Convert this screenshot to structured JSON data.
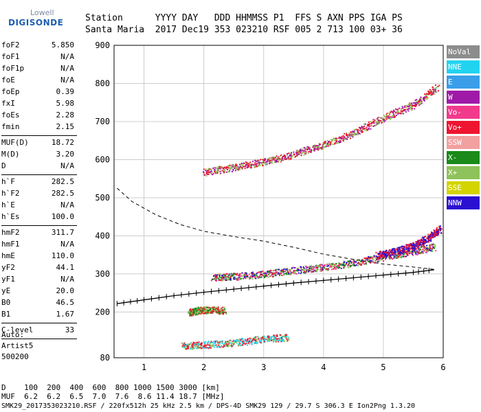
{
  "logo": {
    "line1": "Lowell",
    "line2": "DIGISONDE"
  },
  "header": {
    "line1": "Station      YYYY DAY   DDD HHMMSS P1  FFS S AXN PPS IGA PS",
    "line2": "Santa Maria  2017 Dec19 353 023210 RSF 005 2 713 100 03+ 36"
  },
  "params": [
    {
      "k": "foF2",
      "v": "5.850"
    },
    {
      "k": "foF1",
      "v": "N/A"
    },
    {
      "k": "foF1p",
      "v": "N/A"
    },
    {
      "k": "foE",
      "v": "N/A"
    },
    {
      "k": "foEp",
      "v": "0.39"
    },
    {
      "k": "fxI",
      "v": "5.98"
    },
    {
      "k": "foEs",
      "v": "2.28"
    },
    {
      "k": "fmin",
      "v": "2.15",
      "sep": true
    },
    {
      "k": "MUF(D)",
      "v": "18.72"
    },
    {
      "k": "M(D)",
      "v": "3.20"
    },
    {
      "k": "D",
      "v": "N/A",
      "sep": true
    },
    {
      "k": "h`F",
      "v": "282.5"
    },
    {
      "k": "h`F2",
      "v": "282.5"
    },
    {
      "k": "h`E",
      "v": "N/A"
    },
    {
      "k": "h`Es",
      "v": "100.0",
      "sep": true
    },
    {
      "k": "hmF2",
      "v": "311.7"
    },
    {
      "k": "hmF1",
      "v": "N/A"
    },
    {
      "k": "hmE",
      "v": "110.0"
    },
    {
      "k": "yF2",
      "v": "44.1"
    },
    {
      "k": "yF1",
      "v": "N/A"
    },
    {
      "k": "yE",
      "v": "20.0"
    },
    {
      "k": "B0",
      "v": "46.5"
    },
    {
      "k": "B1",
      "v": "1.67",
      "sep": true
    },
    {
      "k": "C-level",
      "v": "33",
      "sep": true
    }
  ],
  "auto": {
    "line1": "Auto:",
    "line2": "Artist5",
    "line3": "500200"
  },
  "legend": [
    {
      "label": "NoVal",
      "color": "#8c8c8c"
    },
    {
      "label": "NNE",
      "color": "#22d3f0"
    },
    {
      "label": "E",
      "color": "#3a9ee8"
    },
    {
      "label": "W",
      "color": "#a01aa8"
    },
    {
      "label": "Vo-",
      "color": "#f23a8c"
    },
    {
      "label": "Vo+",
      "color": "#ee1530"
    },
    {
      "label": "SSW",
      "color": "#f2a0a0"
    },
    {
      "label": "X-",
      "color": "#1a8a1a"
    },
    {
      "label": "X+",
      "color": "#8ec25a"
    },
    {
      "label": "SSE",
      "color": "#d4d400"
    },
    {
      "label": "NNW",
      "color": "#2a10d0"
    }
  ],
  "chart_data": {
    "type": "scatter",
    "xlim": [
      0.5,
      6.0
    ],
    "ylim": [
      80,
      900
    ],
    "x_ticks": [
      1,
      2,
      3,
      4,
      5,
      6
    ],
    "y_ticks": [
      80,
      200,
      300,
      400,
      500,
      600,
      700,
      800,
      900
    ],
    "grid": true,
    "legend_position": "right",
    "traces": [
      {
        "name": "F2 O-trace",
        "color_names": [
          "Vo+",
          "Vo-",
          "NNW",
          "X-",
          "X+"
        ],
        "points": [
          [
            2.15,
            292
          ],
          [
            2.5,
            294
          ],
          [
            3.0,
            300
          ],
          [
            3.5,
            310
          ],
          [
            4.0,
            318
          ],
          [
            4.5,
            330
          ],
          [
            5.0,
            345
          ],
          [
            5.5,
            360
          ],
          [
            5.85,
            372
          ]
        ]
      },
      {
        "name": "F2 upper trace",
        "color_names": [
          "NNW",
          "Vo+"
        ],
        "points": [
          [
            4.9,
            350
          ],
          [
            5.2,
            360
          ],
          [
            5.5,
            375
          ],
          [
            5.75,
            395
          ],
          [
            5.95,
            420
          ]
        ]
      },
      {
        "name": "F2 multihop",
        "color_names": [
          "W",
          "Vo+",
          "X+"
        ],
        "points": [
          [
            2.0,
            568
          ],
          [
            2.5,
            580
          ],
          [
            3.0,
            595
          ],
          [
            3.5,
            615
          ],
          [
            4.0,
            640
          ],
          [
            4.5,
            670
          ],
          [
            5.0,
            710
          ],
          [
            5.5,
            745
          ],
          [
            5.9,
            790
          ]
        ]
      },
      {
        "name": "Es trace",
        "color_names": [
          "Vo+",
          "X-",
          "X+"
        ],
        "points": [
          [
            1.75,
            200
          ],
          [
            1.9,
            205
          ],
          [
            2.1,
            207
          ],
          [
            2.35,
            205
          ]
        ]
      },
      {
        "name": "Es lower",
        "color_names": [
          "Vo+",
          "X+",
          "NNE"
        ],
        "points": [
          [
            1.65,
            112
          ],
          [
            2.0,
            115
          ],
          [
            2.5,
            120
          ],
          [
            3.0,
            130
          ],
          [
            3.4,
            135
          ]
        ]
      }
    ],
    "profile_curve": {
      "points": [
        [
          0.55,
          222
        ],
        [
          1.0,
          232
        ],
        [
          1.5,
          243
        ],
        [
          2.0,
          252
        ],
        [
          2.5,
          260
        ],
        [
          3.0,
          268
        ],
        [
          3.5,
          276
        ],
        [
          4.0,
          283
        ],
        [
          4.5,
          290
        ],
        [
          5.0,
          297
        ],
        [
          5.5,
          304
        ],
        [
          5.85,
          311
        ]
      ]
    },
    "muf_curve": {
      "points": [
        [
          0.55,
          525
        ],
        [
          0.8,
          490
        ],
        [
          1.2,
          455
        ],
        [
          1.6,
          430
        ],
        [
          2.0,
          412
        ],
        [
          2.5,
          398
        ],
        [
          3.0,
          386
        ],
        [
          3.5,
          370
        ],
        [
          4.0,
          352
        ],
        [
          4.5,
          338
        ],
        [
          5.0,
          326
        ],
        [
          5.5,
          318
        ],
        [
          5.85,
          312
        ]
      ]
    }
  },
  "bottom": {
    "line1": "D    100  200  400  600  800 1000 1500 3000 [km]",
    "line2": "MUF  6.2  6.2  6.5  7.0  7.6  8.6 11.4 18.7 [MHz]"
  },
  "footer": "SMK29_2017353023210.RSF / 220fx512h 25 kHz 2.5 km / DPS-4D SMK29 129 / 29.7 S 306.3 E Ion2Png 1.3.20"
}
